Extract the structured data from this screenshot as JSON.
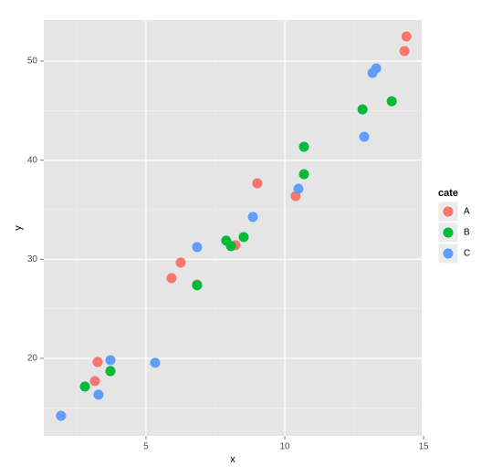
{
  "chart_data": {
    "type": "scatter",
    "x_label": "x",
    "y_label": "y",
    "legend_title": "cate",
    "xlim": [
      1.32,
      14.93
    ],
    "ylim": [
      12.18,
      54.14
    ],
    "xticks": [
      5,
      10,
      15
    ],
    "yticks": [
      20,
      30,
      40,
      50
    ],
    "grid": true,
    "legend_position": "right",
    "series": [
      {
        "name": "A",
        "color": "#F8766D",
        "x": [
          14.38,
          14.31,
          9.01,
          10.39,
          8.22,
          6.25,
          5.92,
          6.84,
          3.26,
          3.16
        ],
        "values": [
          52.48,
          51.01,
          37.67,
          36.38,
          31.42,
          29.67,
          28.1,
          27.46,
          19.64,
          17.71
        ]
      },
      {
        "name": "B",
        "color": "#00BA38",
        "x": [
          13.85,
          12.8,
          10.69,
          10.69,
          8.52,
          7.89,
          8.06,
          6.84,
          3.72,
          2.8
        ],
        "values": [
          45.95,
          45.12,
          41.35,
          38.59,
          32.24,
          31.88,
          31.33,
          27.37,
          18.72,
          17.16
        ]
      },
      {
        "name": "C",
        "color": "#619CFF",
        "x": [
          13.29,
          13.16,
          12.86,
          10.49,
          8.85,
          6.84,
          3.72,
          5.33,
          3.29,
          1.94
        ],
        "values": [
          49.26,
          48.8,
          42.36,
          37.12,
          34.27,
          31.23,
          19.82,
          19.55,
          16.33,
          14.21
        ]
      }
    ]
  }
}
